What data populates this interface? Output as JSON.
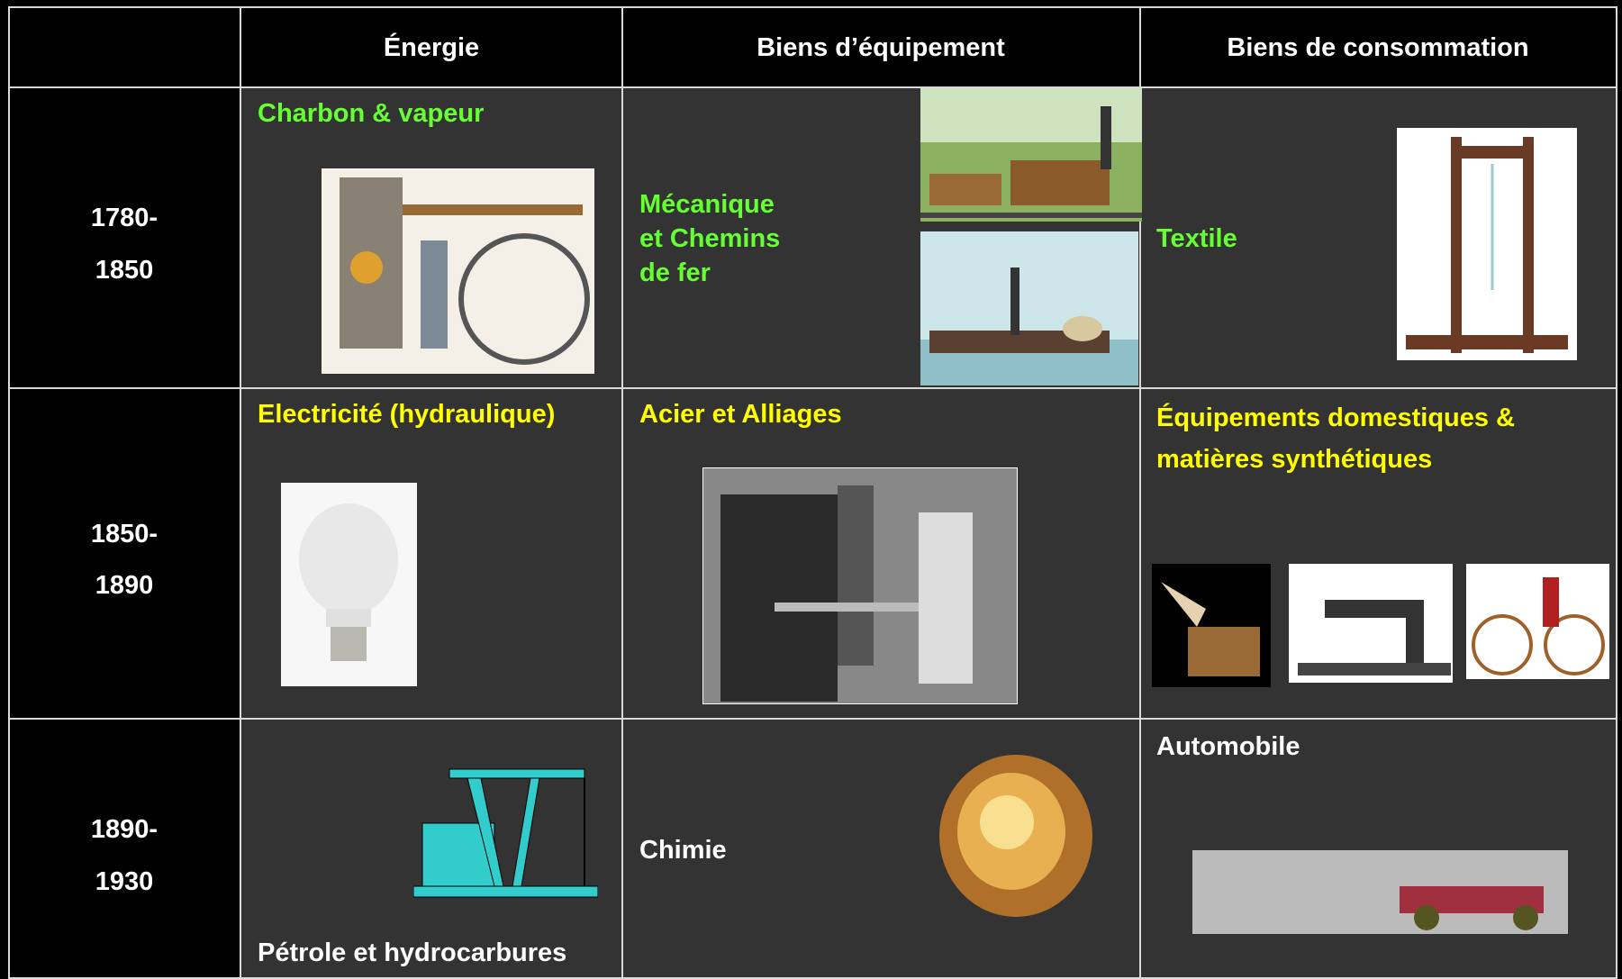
{
  "table": {
    "header": [
      "Énergie",
      "Biens d’équipement",
      "Biens de consommation"
    ],
    "rows": [
      {
        "period": [
          "1780-",
          "1850"
        ],
        "energie": "Charbon & vapeur",
        "equipement": [
          "Mécanique",
          "et Chemins",
          "de fer"
        ],
        "consommation": [
          "Textile"
        ]
      },
      {
        "period": [
          "1850-",
          "1890"
        ],
        "energie": "Electricité (hydraulique)",
        "equipement": [
          "Acier et Alliages"
        ],
        "consommation": [
          "Équipements domestiques &",
          "matières synthétiques"
        ]
      },
      {
        "period": [
          "1890-",
          "1930"
        ],
        "energie": "Pétrole et hydrocarbures",
        "equipement": [
          "Chimie"
        ],
        "consommation": [
          "Automobile"
        ]
      }
    ]
  }
}
